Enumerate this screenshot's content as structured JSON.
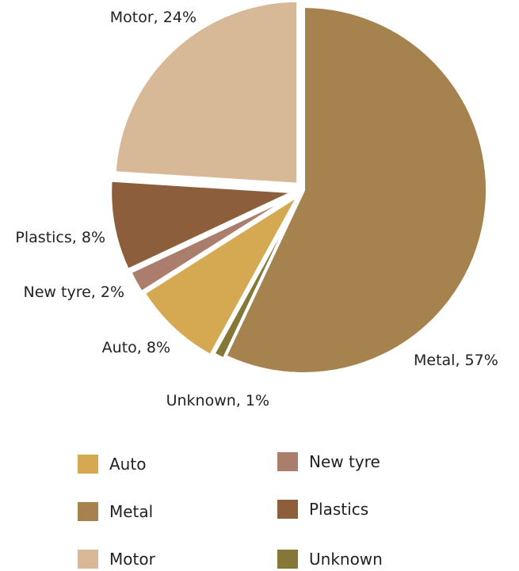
{
  "chart_data": {
    "type": "pie",
    "title": "",
    "slices": [
      {
        "label": "Metal",
        "value": 57,
        "display": "Metal, 57%",
        "color": "#A6824F"
      },
      {
        "label": "Unknown",
        "value": 1,
        "display": "Unknown, 1%",
        "color": "#847737"
      },
      {
        "label": "Auto",
        "value": 8,
        "display": "Auto, 8%",
        "color": "#D5A952"
      },
      {
        "label": "New tyre",
        "value": 2,
        "display": "New tyre, 2%",
        "color": "#AA7D6C"
      },
      {
        "label": "Plastics",
        "value": 8,
        "display": "Plastics, 8%",
        "color": "#8C5E3C"
      },
      {
        "label": "Motor",
        "value": 24,
        "display": "Motor, 24%",
        "color": "#D7B997"
      }
    ],
    "legend": {
      "placement": "bottom",
      "items": [
        {
          "label": "Auto",
          "color": "#D5A952"
        },
        {
          "label": "New tyre",
          "color": "#AA7D6C"
        },
        {
          "label": "Metal",
          "color": "#A6824F"
        },
        {
          "label": "Plastics",
          "color": "#8C5E3C"
        },
        {
          "label": "Motor",
          "color": "#D7B997"
        },
        {
          "label": "Unknown",
          "color": "#847737"
        }
      ]
    }
  }
}
